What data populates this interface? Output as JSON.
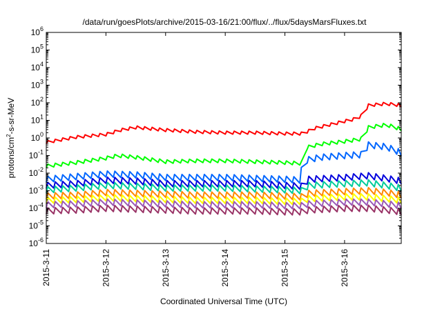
{
  "chart_data": {
    "type": "line",
    "title": "/data/run/goesPlots/archive/2015-03-16/21:00/flux/../flux/5daysMarsFluxes.txt",
    "xlabel": "Coordinated Universal Time (UTC)",
    "ylabel": {
      "base": "protons/cm",
      "sup": "2",
      "rest": "-s-sr-MeV"
    },
    "x_ticks": [
      "2015-3-11",
      "2015-3-12",
      "2015-3-13",
      "2015-3-14",
      "2015-3-15",
      "2015-3-16"
    ],
    "x_range_days": [
      0,
      5.95
    ],
    "y_scale": "log",
    "y_ticks": [
      {
        "base": "10",
        "exp": "-6"
      },
      {
        "base": "10",
        "exp": "-5"
      },
      {
        "base": "10",
        "exp": "-4"
      },
      {
        "base": "10",
        "exp": "-3"
      },
      {
        "base": "10",
        "exp": "-2"
      },
      {
        "base": "10",
        "exp": "-1"
      },
      {
        "base": "10",
        "exp": "0"
      },
      {
        "base": "10",
        "exp": "1"
      },
      {
        "base": "10",
        "exp": "2"
      },
      {
        "base": "10",
        "exp": "3"
      },
      {
        "base": "10",
        "exp": "4"
      },
      {
        "base": "10",
        "exp": "5"
      },
      {
        "base": "10",
        "exp": "6"
      }
    ],
    "y_range_log10": [
      -6,
      6
    ],
    "grid": false,
    "legend": "none",
    "series": [
      {
        "color": "#ff0000",
        "amplitude": 0.17,
        "points": [
          [
            0,
            -0.25
          ],
          [
            0.5,
            0.05
          ],
          [
            1.0,
            0.2
          ],
          [
            1.25,
            0.45
          ],
          [
            1.5,
            0.6
          ],
          [
            2.0,
            0.45
          ],
          [
            2.5,
            0.35
          ],
          [
            3.0,
            0.3
          ],
          [
            3.5,
            0.3
          ],
          [
            4.0,
            0.25
          ],
          [
            4.3,
            0.25
          ],
          [
            4.5,
            0.55
          ],
          [
            5.0,
            0.95
          ],
          [
            5.2,
            1.1
          ],
          [
            5.3,
            1.3
          ],
          [
            5.4,
            1.85
          ],
          [
            5.7,
            1.95
          ],
          [
            5.95,
            1.85
          ]
        ]
      },
      {
        "color": "#00ff00",
        "amplitude": 0.2,
        "points": [
          [
            0,
            -1.6
          ],
          [
            0.5,
            -1.4
          ],
          [
            1.0,
            -1.15
          ],
          [
            1.2,
            -1.0
          ],
          [
            1.5,
            -1.1
          ],
          [
            2.0,
            -1.35
          ],
          [
            2.5,
            -1.3
          ],
          [
            3.0,
            -1.3
          ],
          [
            3.5,
            -1.35
          ],
          [
            4.0,
            -1.4
          ],
          [
            4.3,
            -1.45
          ],
          [
            4.35,
            -0.55
          ],
          [
            4.6,
            -0.35
          ],
          [
            5.0,
            -0.2
          ],
          [
            5.3,
            -0.05
          ],
          [
            5.4,
            0.6
          ],
          [
            5.7,
            0.75
          ],
          [
            5.95,
            0.5
          ]
        ]
      },
      {
        "color": "#0066ff",
        "amplitude": 0.35,
        "points": [
          [
            0,
            -2.35
          ],
          [
            0.5,
            -2.2
          ],
          [
            1.0,
            -2.05
          ],
          [
            1.5,
            -2.1
          ],
          [
            2.0,
            -2.25
          ],
          [
            2.5,
            -2.25
          ],
          [
            3.0,
            -2.25
          ],
          [
            3.5,
            -2.3
          ],
          [
            4.0,
            -2.35
          ],
          [
            4.25,
            -2.4
          ],
          [
            4.3,
            -1.3
          ],
          [
            4.6,
            -1.1
          ],
          [
            5.0,
            -1.0
          ],
          [
            5.3,
            -0.95
          ],
          [
            5.4,
            -0.4
          ],
          [
            5.7,
            -0.5
          ],
          [
            5.95,
            -0.85
          ]
        ]
      },
      {
        "color": "#0000dd",
        "amplitude": 0.35,
        "points": [
          [
            0,
            -2.7
          ],
          [
            0.5,
            -2.6
          ],
          [
            1.0,
            -2.4
          ],
          [
            1.5,
            -2.45
          ],
          [
            2.0,
            -2.6
          ],
          [
            2.5,
            -2.6
          ],
          [
            3.0,
            -2.6
          ],
          [
            3.5,
            -2.6
          ],
          [
            4.0,
            -2.7
          ],
          [
            4.3,
            -2.75
          ],
          [
            4.4,
            -2.35
          ],
          [
            5.0,
            -2.25
          ],
          [
            5.4,
            -2.15
          ],
          [
            5.7,
            -2.3
          ],
          [
            5.95,
            -2.45
          ]
        ]
      },
      {
        "color": "#00cc99",
        "amplitude": 0.35,
        "points": [
          [
            0,
            -2.95
          ],
          [
            0.5,
            -2.85
          ],
          [
            1.0,
            -2.7
          ],
          [
            1.5,
            -2.75
          ],
          [
            2.0,
            -2.85
          ],
          [
            2.5,
            -2.85
          ],
          [
            3.0,
            -2.85
          ],
          [
            3.5,
            -2.9
          ],
          [
            4.0,
            -2.95
          ],
          [
            4.3,
            -3.0
          ],
          [
            4.4,
            -2.7
          ],
          [
            5.0,
            -2.6
          ],
          [
            5.4,
            -2.55
          ],
          [
            5.7,
            -2.7
          ],
          [
            5.95,
            -2.85
          ]
        ]
      },
      {
        "color": "#ff8800",
        "amplitude": 0.35,
        "points": [
          [
            0,
            -3.3
          ],
          [
            0.5,
            -3.25
          ],
          [
            1.0,
            -3.1
          ],
          [
            1.5,
            -3.15
          ],
          [
            2.0,
            -3.2
          ],
          [
            2.5,
            -3.25
          ],
          [
            3.0,
            -3.25
          ],
          [
            3.5,
            -3.25
          ],
          [
            4.0,
            -3.3
          ],
          [
            4.3,
            -3.35
          ],
          [
            4.4,
            -3.15
          ],
          [
            5.0,
            -3.05
          ],
          [
            5.4,
            -3.0
          ],
          [
            5.7,
            -3.1
          ],
          [
            5.95,
            -3.25
          ]
        ]
      },
      {
        "color": "#ffff00",
        "amplitude": 0.35,
        "points": [
          [
            0,
            -3.55
          ],
          [
            0.5,
            -3.5
          ],
          [
            1.0,
            -3.4
          ],
          [
            1.5,
            -3.45
          ],
          [
            2.0,
            -3.5
          ],
          [
            2.5,
            -3.55
          ],
          [
            3.0,
            -3.55
          ],
          [
            3.5,
            -3.55
          ],
          [
            4.0,
            -3.6
          ],
          [
            4.3,
            -3.6
          ],
          [
            4.4,
            -3.45
          ],
          [
            5.0,
            -3.35
          ],
          [
            5.4,
            -3.35
          ],
          [
            5.7,
            -3.45
          ],
          [
            5.95,
            -3.55
          ]
        ]
      },
      {
        "color": "#9b59b6",
        "amplitude": 0.35,
        "points": [
          [
            0,
            -3.8
          ],
          [
            0.5,
            -3.75
          ],
          [
            1.0,
            -3.65
          ],
          [
            1.5,
            -3.7
          ],
          [
            2.0,
            -3.75
          ],
          [
            2.5,
            -3.8
          ],
          [
            3.0,
            -3.8
          ],
          [
            3.5,
            -3.8
          ],
          [
            4.0,
            -3.85
          ],
          [
            4.3,
            -3.85
          ],
          [
            4.4,
            -3.75
          ],
          [
            5.0,
            -3.65
          ],
          [
            5.4,
            -3.65
          ],
          [
            5.7,
            -3.75
          ],
          [
            5.95,
            -3.85
          ]
        ]
      },
      {
        "color": "#993366",
        "amplitude": 0.35,
        "points": [
          [
            0,
            -4.15
          ],
          [
            0.5,
            -4.1
          ],
          [
            1.0,
            -4.0
          ],
          [
            1.5,
            -4.05
          ],
          [
            2.0,
            -4.1
          ],
          [
            2.5,
            -4.15
          ],
          [
            3.0,
            -4.15
          ],
          [
            3.5,
            -4.15
          ],
          [
            4.0,
            -4.2
          ],
          [
            4.3,
            -4.2
          ],
          [
            4.4,
            -4.1
          ],
          [
            5.0,
            -4.0
          ],
          [
            5.4,
            -4.0
          ],
          [
            5.7,
            -4.1
          ],
          [
            5.95,
            -4.2
          ]
        ]
      }
    ],
    "oscillation_period_days": 0.125
  }
}
